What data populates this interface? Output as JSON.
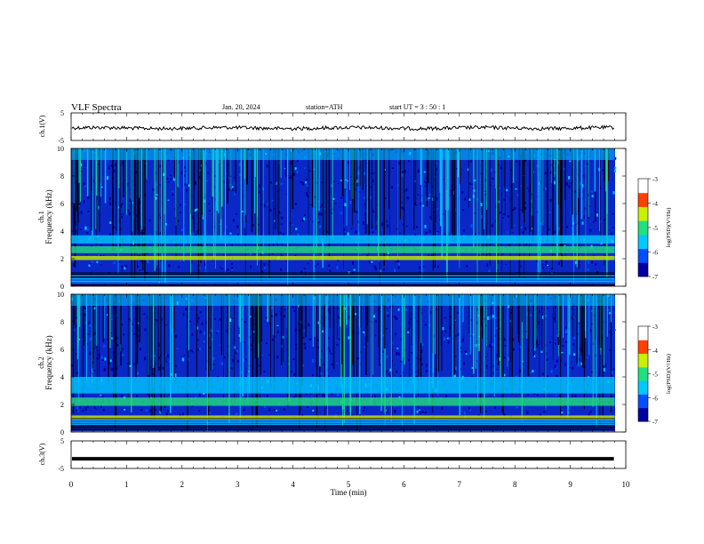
{
  "header": {
    "title": "VLF  Spectra",
    "date": "Jan. 20, 2024",
    "station": "station=ATH",
    "start": "start  UT  =   3  : 50 : 1"
  },
  "chart_data": [
    {
      "type": "line",
      "ylabel": "ch.1(V)",
      "ylim": [
        -5,
        5
      ],
      "yticks": [
        "5",
        "-5"
      ],
      "xlim": [
        0,
        10
      ],
      "baseline_v": -0.5,
      "xend_min": 9.8
    },
    {
      "type": "heatmap",
      "ylabel": "Frequency  (kHz)",
      "channel": "ch.1",
      "ylim": [
        0,
        10
      ],
      "yticks": [
        "0",
        "2",
        "4",
        "6",
        "8",
        "10"
      ],
      "xlim": [
        0,
        10
      ],
      "colorbar": {
        "label": "log(PSD)(V²/Hz)",
        "range": [
          -7,
          -3
        ],
        "ticks": [
          "-3",
          "-4",
          "-5",
          "-6",
          "-7"
        ]
      },
      "colors": [
        "#000000",
        "#0000a0",
        "#0050ff",
        "#00c8ff",
        "#20e080",
        "#c8f000",
        "#ff4000",
        "#ffffff"
      ]
    },
    {
      "type": "heatmap",
      "ylabel": "Frequency  (kHz)",
      "channel": "ch.2",
      "ylim": [
        0,
        10
      ],
      "yticks": [
        "0",
        "2",
        "4",
        "6",
        "8",
        "10"
      ],
      "xlim": [
        0,
        10
      ],
      "colorbar": {
        "label": "log(PSD)(V²/Hz)",
        "range": [
          -7,
          -3
        ],
        "ticks": [
          "-3",
          "-4",
          "-5",
          "-6",
          "-7"
        ]
      },
      "colors": [
        "#000000",
        "#0000a0",
        "#0050ff",
        "#00c8ff",
        "#20e080",
        "#c8f000",
        "#ff4000",
        "#ffffff"
      ]
    },
    {
      "type": "line",
      "ylabel": "ch.3(V)",
      "ylim": [
        -5,
        5
      ],
      "yticks": [
        "5",
        "-5"
      ],
      "xlim": [
        0,
        10
      ],
      "baseline_v": -1.5,
      "xend_min": 9.8
    }
  ],
  "xaxis": {
    "label": "Time  (min)",
    "ticks": [
      "0",
      "1",
      "2",
      "3",
      "4",
      "5",
      "6",
      "7",
      "8",
      "9",
      "10"
    ]
  }
}
